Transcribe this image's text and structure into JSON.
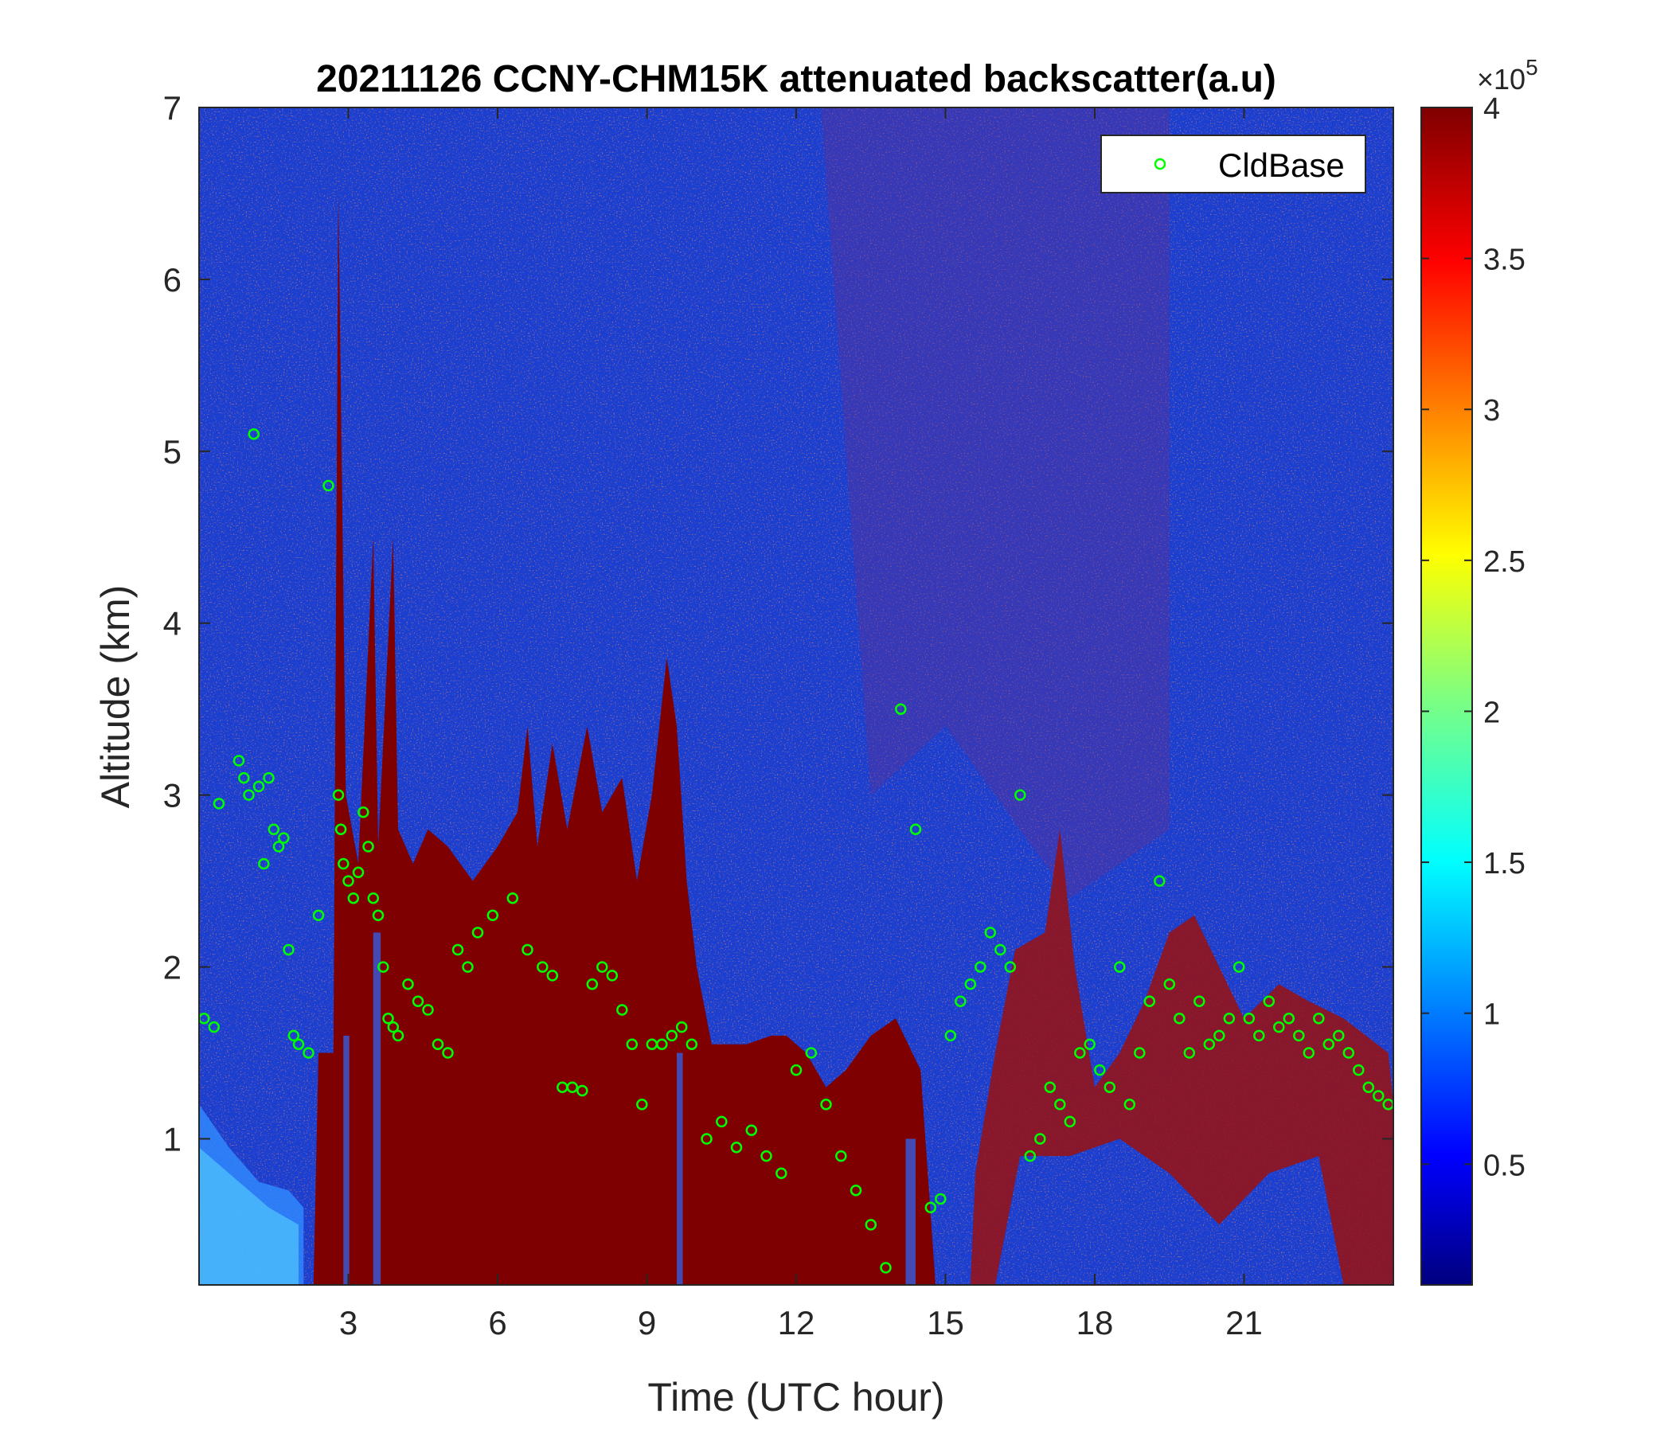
{
  "chart_data": {
    "type": "heatmap",
    "title": "20211126 CCNY-CHM15K attenuated backscatter(a.u)",
    "xlabel": "Time (UTC hour)",
    "ylabel": "Altitude (km)",
    "xlim": [
      0,
      24
    ],
    "ylim": [
      0.15,
      7
    ],
    "x_ticks": [
      3,
      6,
      9,
      12,
      15,
      18,
      21
    ],
    "x_tick_labels": [
      "3",
      "6",
      "9",
      "12",
      "15",
      "18",
      "21"
    ],
    "y_ticks": [
      1,
      2,
      3,
      4,
      5,
      6,
      7
    ],
    "y_tick_labels": [
      "1",
      "2",
      "3",
      "4",
      "5",
      "6",
      "7"
    ],
    "colorbar": {
      "colormap": "jet",
      "range": [
        0.1,
        4
      ],
      "exponent_label": "×10",
      "exponent": "5",
      "ticks": [
        0.5,
        1,
        1.5,
        2,
        2.5,
        3,
        3.5,
        4
      ],
      "tick_labels": [
        "0.5",
        "1",
        "1.5",
        "2",
        "2.5",
        "3",
        "3.5",
        "4"
      ]
    },
    "legend": {
      "placement": "top-right",
      "entries": [
        "CldBase"
      ]
    },
    "marker_color": "#00ff00",
    "series": [
      {
        "name": "CldBase",
        "marker": "circle",
        "x": [
          0.1,
          0.3,
          0.4,
          0.8,
          0.9,
          1.0,
          1.1,
          1.2,
          1.3,
          1.4,
          1.5,
          1.6,
          1.7,
          1.8,
          1.9,
          2.0,
          2.2,
          2.4,
          2.6,
          2.8,
          2.85,
          2.9,
          3.0,
          3.1,
          3.2,
          3.3,
          3.4,
          3.5,
          3.6,
          3.7,
          3.8,
          3.9,
          4.0,
          4.2,
          4.4,
          4.6,
          4.8,
          5.0,
          5.2,
          5.4,
          5.6,
          5.9,
          6.3,
          6.6,
          6.9,
          7.1,
          7.3,
          7.5,
          7.7,
          7.9,
          8.1,
          8.3,
          8.5,
          8.7,
          8.9,
          9.1,
          9.3,
          9.5,
          9.7,
          9.9,
          10.2,
          10.5,
          10.8,
          11.1,
          11.4,
          11.7,
          12.0,
          12.3,
          12.6,
          12.9,
          13.2,
          13.5,
          13.8,
          14.1,
          14.4,
          14.7,
          14.9,
          15.1,
          15.3,
          15.5,
          15.7,
          15.9,
          16.1,
          16.3,
          16.5,
          16.7,
          16.9,
          17.1,
          17.3,
          17.5,
          17.7,
          17.9,
          18.1,
          18.3,
          18.5,
          18.7,
          18.9,
          19.1,
          19.3,
          19.5,
          19.7,
          19.9,
          20.1,
          20.3,
          20.5,
          20.7,
          20.9,
          21.1,
          21.3,
          21.5,
          21.7,
          21.9,
          22.1,
          22.3,
          22.5,
          22.7,
          22.9,
          23.1,
          23.3,
          23.5,
          23.7,
          23.9
        ],
        "y": [
          1.7,
          1.65,
          2.95,
          3.2,
          3.1,
          3.0,
          5.1,
          3.05,
          2.6,
          3.1,
          2.8,
          2.7,
          2.75,
          2.1,
          1.6,
          1.55,
          1.5,
          2.3,
          4.8,
          3.0,
          2.8,
          2.6,
          2.5,
          2.4,
          2.55,
          2.9,
          2.7,
          2.4,
          2.3,
          2.0,
          1.7,
          1.65,
          1.6,
          1.9,
          1.8,
          1.75,
          1.55,
          1.5,
          2.1,
          2.0,
          2.2,
          2.3,
          2.4,
          2.1,
          2.0,
          1.95,
          1.3,
          1.3,
          1.28,
          1.9,
          2.0,
          1.95,
          1.75,
          1.55,
          1.2,
          1.55,
          1.55,
          1.6,
          1.65,
          1.55,
          1.0,
          1.1,
          0.95,
          1.05,
          0.9,
          0.8,
          1.4,
          1.5,
          1.2,
          0.9,
          0.7,
          0.5,
          0.25,
          3.5,
          2.8,
          0.6,
          0.65,
          1.6,
          1.8,
          1.9,
          2.0,
          2.2,
          2.1,
          2.0,
          3.0,
          0.9,
          1.0,
          1.3,
          1.2,
          1.1,
          1.5,
          1.55,
          1.4,
          1.3,
          2.0,
          1.2,
          1.5,
          1.8,
          2.5,
          1.9,
          1.7,
          1.5,
          1.8,
          1.55,
          1.6,
          1.7,
          2.0,
          1.7,
          1.6,
          1.8,
          1.65,
          1.7,
          1.6,
          1.5,
          1.7,
          1.55,
          1.6,
          1.5,
          1.4,
          1.3,
          1.25,
          1.2
        ]
      }
    ]
  }
}
